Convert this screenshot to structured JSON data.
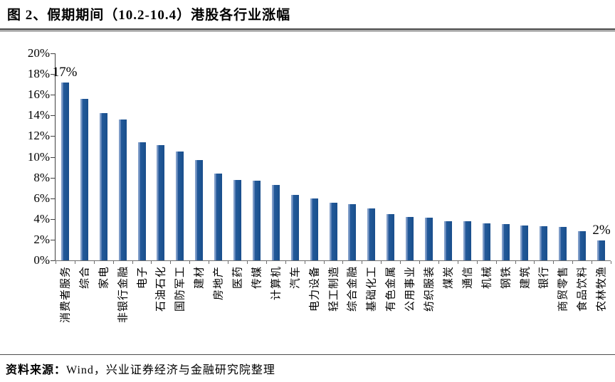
{
  "figure": {
    "title": "图 2、假期期间（10.2-10.4）港股各行业涨幅",
    "source_prefix": "资料来源：",
    "source_text": "Wind，兴业证券经济与金融研究院整理"
  },
  "chart_data": {
    "type": "bar",
    "title": "假期期间（10.2-10.4）港股各行业涨幅",
    "categories": [
      "消费者服务",
      "综合",
      "家电",
      "非银行金融",
      "电子",
      "石油石化",
      "国防军工",
      "建材",
      "房地产",
      "医药",
      "传媒",
      "计算机",
      "汽车",
      "电力设备",
      "轻工制造",
      "综合金融",
      "基础化工",
      "有色金属",
      "公用事业",
      "纺织服装",
      "煤炭",
      "通信",
      "机械",
      "钢铁",
      "建筑",
      "银行",
      "商贸零售",
      "食品饮料",
      "农林牧渔"
    ],
    "values": [
      17.2,
      15.6,
      14.2,
      13.6,
      11.4,
      11.1,
      10.5,
      9.7,
      8.4,
      7.8,
      7.7,
      7.3,
      6.3,
      6.0,
      5.6,
      5.4,
      5.0,
      4.5,
      4.2,
      4.1,
      3.8,
      3.8,
      3.6,
      3.5,
      3.4,
      3.3,
      3.2,
      2.8,
      1.9
    ],
    "xlabel": "",
    "ylabel": "",
    "ylim": [
      0,
      20
    ],
    "ytick_step": 2,
    "ytick_suffix": "%",
    "grid": false,
    "legend": "none",
    "bar_color": "#1F5795",
    "annotations": [
      {
        "index": 0,
        "text": "17%"
      },
      {
        "index": 28,
        "text": "2%"
      }
    ]
  }
}
